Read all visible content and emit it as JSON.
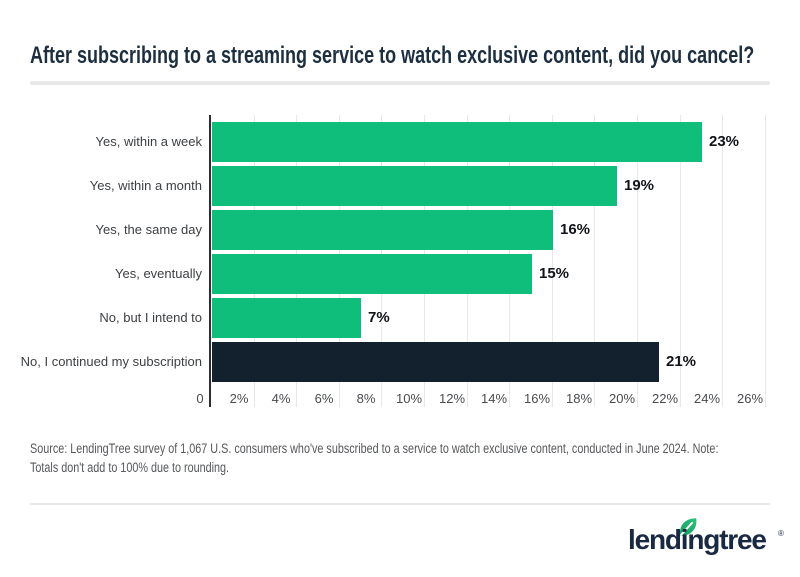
{
  "header": {
    "title": "After subscribing to a streaming service to watch exclusive content, did you cancel?"
  },
  "chart_data": {
    "type": "bar",
    "orientation": "horizontal",
    "title": "After subscribing to a streaming service to watch exclusive content, did you cancel?",
    "categories": [
      "Yes, within a week",
      "Yes, within a month",
      "Yes, the same day",
      "Yes, eventually",
      "No, but I intend to",
      "No, I continued my subscription"
    ],
    "values": [
      23,
      19,
      16,
      15,
      7,
      21
    ],
    "value_labels": [
      "23%",
      "19%",
      "16%",
      "15%",
      "7%",
      "21%"
    ],
    "bar_colors": [
      "#0fbe7b",
      "#0fbe7b",
      "#0fbe7b",
      "#0fbe7b",
      "#0fbe7b",
      "#13202e"
    ],
    "x_ticks": [
      "0",
      "2%",
      "4%",
      "6%",
      "8%",
      "10%",
      "12%",
      "14%",
      "16%",
      "18%",
      "20%",
      "22%",
      "24%",
      "26%"
    ],
    "xlim": [
      0,
      26
    ],
    "x_tick_step": 2,
    "unit": "%",
    "grid": "vertical-light",
    "legend": "none"
  },
  "source_note": {
    "lines": [
      "Source: LendingTree survey of 1,067 U.S. consumers who've subscribed to a service to watch exclusive content, conducted in June 2024. Note:",
      "Totals don't add to 100% due to rounding."
    ]
  },
  "footer": {
    "logo_text": "lendingtree",
    "registered_mark": "®"
  },
  "colors": {
    "bar_green": "#0fbe7b",
    "bar_navy": "#13202e",
    "title_navy": "#1c2e3f",
    "logo_navy": "#182941",
    "leaf_green": "#2bc47e",
    "leaf_green_dark": "#169a60",
    "gridline": "#e8e8e8",
    "axis": "#2e2e2e",
    "divider": "#e9e9e9",
    "source_gray": "#55575a"
  }
}
